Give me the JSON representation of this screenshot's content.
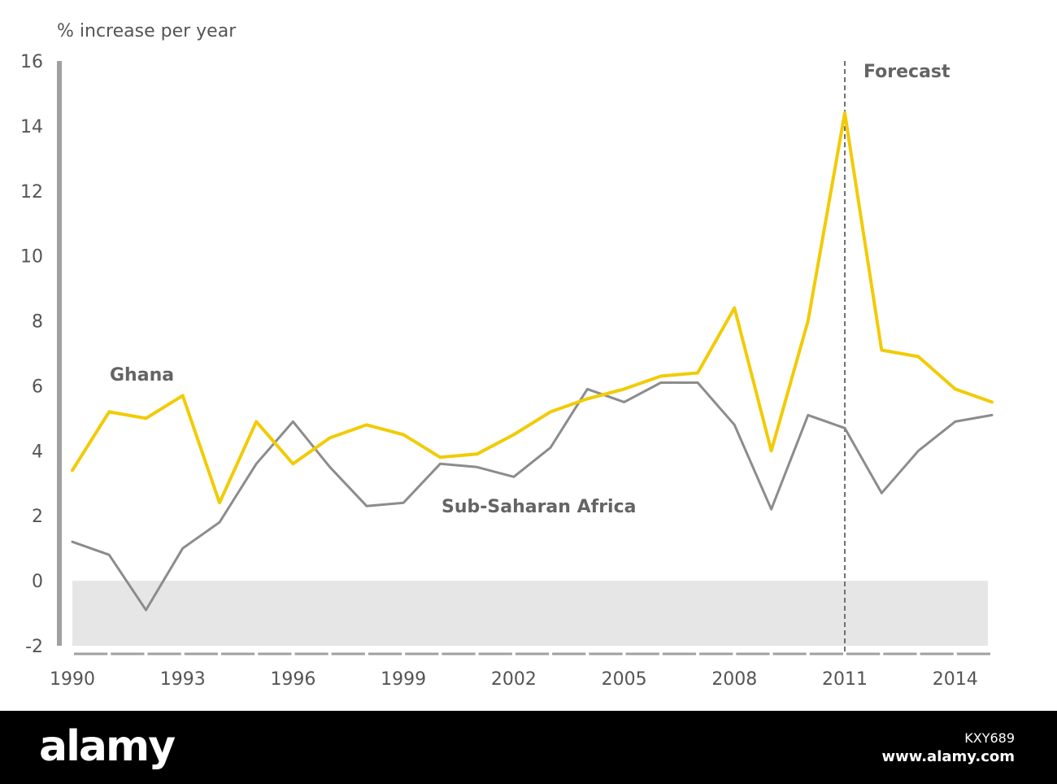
{
  "chart_data": {
    "type": "line",
    "ylabel": "% increase per year",
    "ylim": [
      -2,
      16
    ],
    "yticks": [
      -2,
      0,
      2,
      4,
      6,
      8,
      10,
      12,
      14,
      16
    ],
    "xlim": [
      1990,
      2015
    ],
    "xtick_labels": [
      "1990",
      "1993",
      "1996",
      "1999",
      "2002",
      "2005",
      "2008",
      "2011",
      "2014"
    ],
    "x": [
      1990,
      1991,
      1992,
      1993,
      1994,
      1995,
      1996,
      1997,
      1998,
      1999,
      2000,
      2001,
      2002,
      2003,
      2004,
      2005,
      2006,
      2007,
      2008,
      2009,
      2010,
      2011,
      2012,
      2013,
      2014,
      2015
    ],
    "series": [
      {
        "name": "Ghana",
        "color": "#f2cb05",
        "values": [
          3.4,
          5.2,
          5.0,
          5.7,
          2.4,
          4.9,
          3.6,
          4.4,
          4.8,
          4.5,
          3.8,
          3.9,
          4.5,
          5.2,
          5.6,
          5.9,
          6.3,
          6.4,
          8.4,
          4.0,
          8.0,
          14.4,
          7.1,
          6.9,
          5.9,
          5.5
        ]
      },
      {
        "name": "Sub-Saharan Africa",
        "color": "#8c8c8c",
        "values": [
          1.2,
          0.8,
          -0.9,
          1.0,
          1.8,
          3.6,
          4.9,
          3.5,
          2.3,
          2.4,
          3.6,
          3.5,
          3.2,
          4.1,
          5.9,
          5.5,
          6.1,
          6.1,
          4.8,
          2.2,
          5.1,
          4.7,
          2.7,
          4.0,
          4.9,
          5.1
        ]
      }
    ],
    "forecast_from": 2011,
    "annotations": {
      "forecast": "Forecast",
      "ghana": "Ghana",
      "ssa": "Sub-Saharan Africa"
    },
    "negative_band_color": "#e6e6e6",
    "axis_color": "#a0a0a0"
  },
  "watermark": {
    "logo": "alamy",
    "image_id": "KXY689",
    "url": "www.alamy.com"
  }
}
